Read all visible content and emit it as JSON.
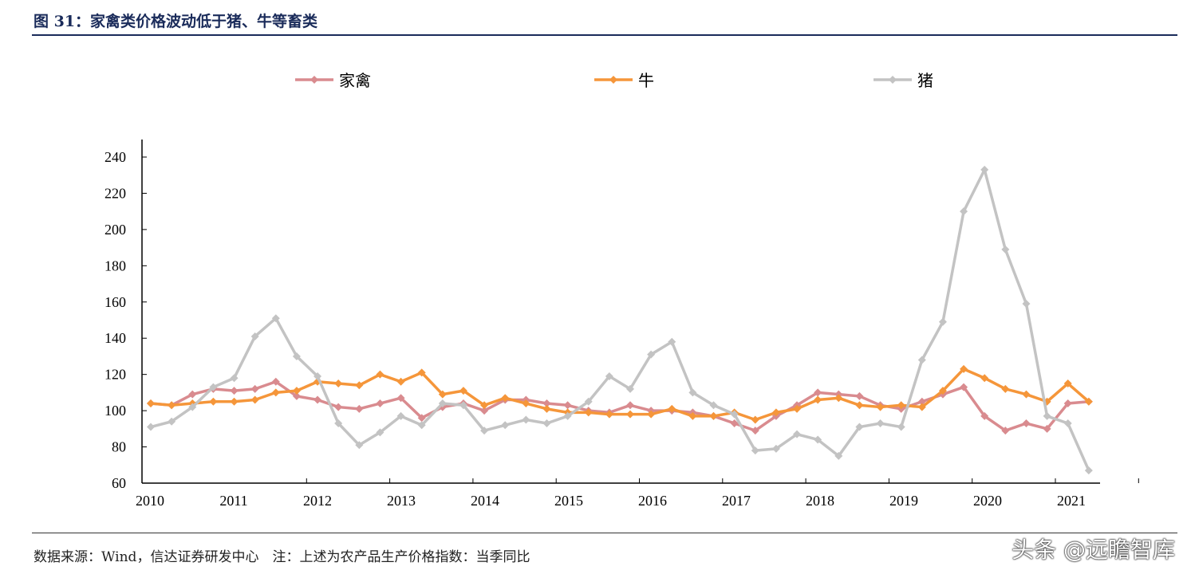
{
  "title": "图 31：家禽类价格波动低于猪、牛等畜类",
  "source": "数据来源：Wind，信达证券研发中心　注：上述为农产品生产价格指数：当季同比",
  "watermark": "头条 @远瞻智库",
  "chart_data": {
    "type": "line",
    "title": "",
    "xlabel": "",
    "ylabel": "",
    "ylim": [
      60,
      240
    ],
    "yticks": [
      "60",
      "80",
      "100",
      "120",
      "140",
      "160",
      "180",
      "200",
      "220",
      "240"
    ],
    "xticks": [
      "2010",
      "2011",
      "2012",
      "2013",
      "2014",
      "2015",
      "2016",
      "2017",
      "2018",
      "2019",
      "2020",
      "2021"
    ],
    "x_frequency": "quarterly, 2010Q1–2021Q2",
    "legend_position": "top",
    "grid": false,
    "series": [
      {
        "name": "家禽",
        "color": "#d98b8f",
        "values": [
          104,
          103,
          109,
          112,
          111,
          112,
          116,
          108,
          106,
          102,
          101,
          104,
          107,
          96,
          102,
          104,
          100,
          106,
          106,
          104,
          103,
          100,
          99,
          103,
          100,
          100,
          99,
          97,
          93,
          89,
          97,
          103,
          110,
          109,
          108,
          103,
          101,
          105,
          109,
          113,
          97,
          89,
          93,
          90,
          104,
          105
        ]
      },
      {
        "name": "牛",
        "color": "#f5963a",
        "values": [
          104,
          103,
          104,
          105,
          105,
          106,
          110,
          111,
          116,
          115,
          114,
          120,
          116,
          121,
          109,
          111,
          103,
          107,
          104,
          101,
          99,
          99,
          98,
          98,
          98,
          101,
          97,
          97,
          99,
          95,
          99,
          101,
          106,
          107,
          103,
          102,
          103,
          102,
          111,
          123,
          118,
          112,
          109,
          105,
          115,
          105
        ]
      },
      {
        "name": "猪",
        "color": "#c3c3c3",
        "values": [
          91,
          94,
          102,
          113,
          118,
          141,
          151,
          130,
          119,
          93,
          81,
          88,
          97,
          92,
          104,
          103,
          89,
          92,
          95,
          93,
          97,
          105,
          119,
          112,
          131,
          138,
          110,
          103,
          98,
          78,
          79,
          87,
          84,
          75,
          91,
          93,
          91,
          128,
          149,
          210,
          233,
          189,
          159,
          97,
          93,
          67
        ]
      }
    ]
  }
}
